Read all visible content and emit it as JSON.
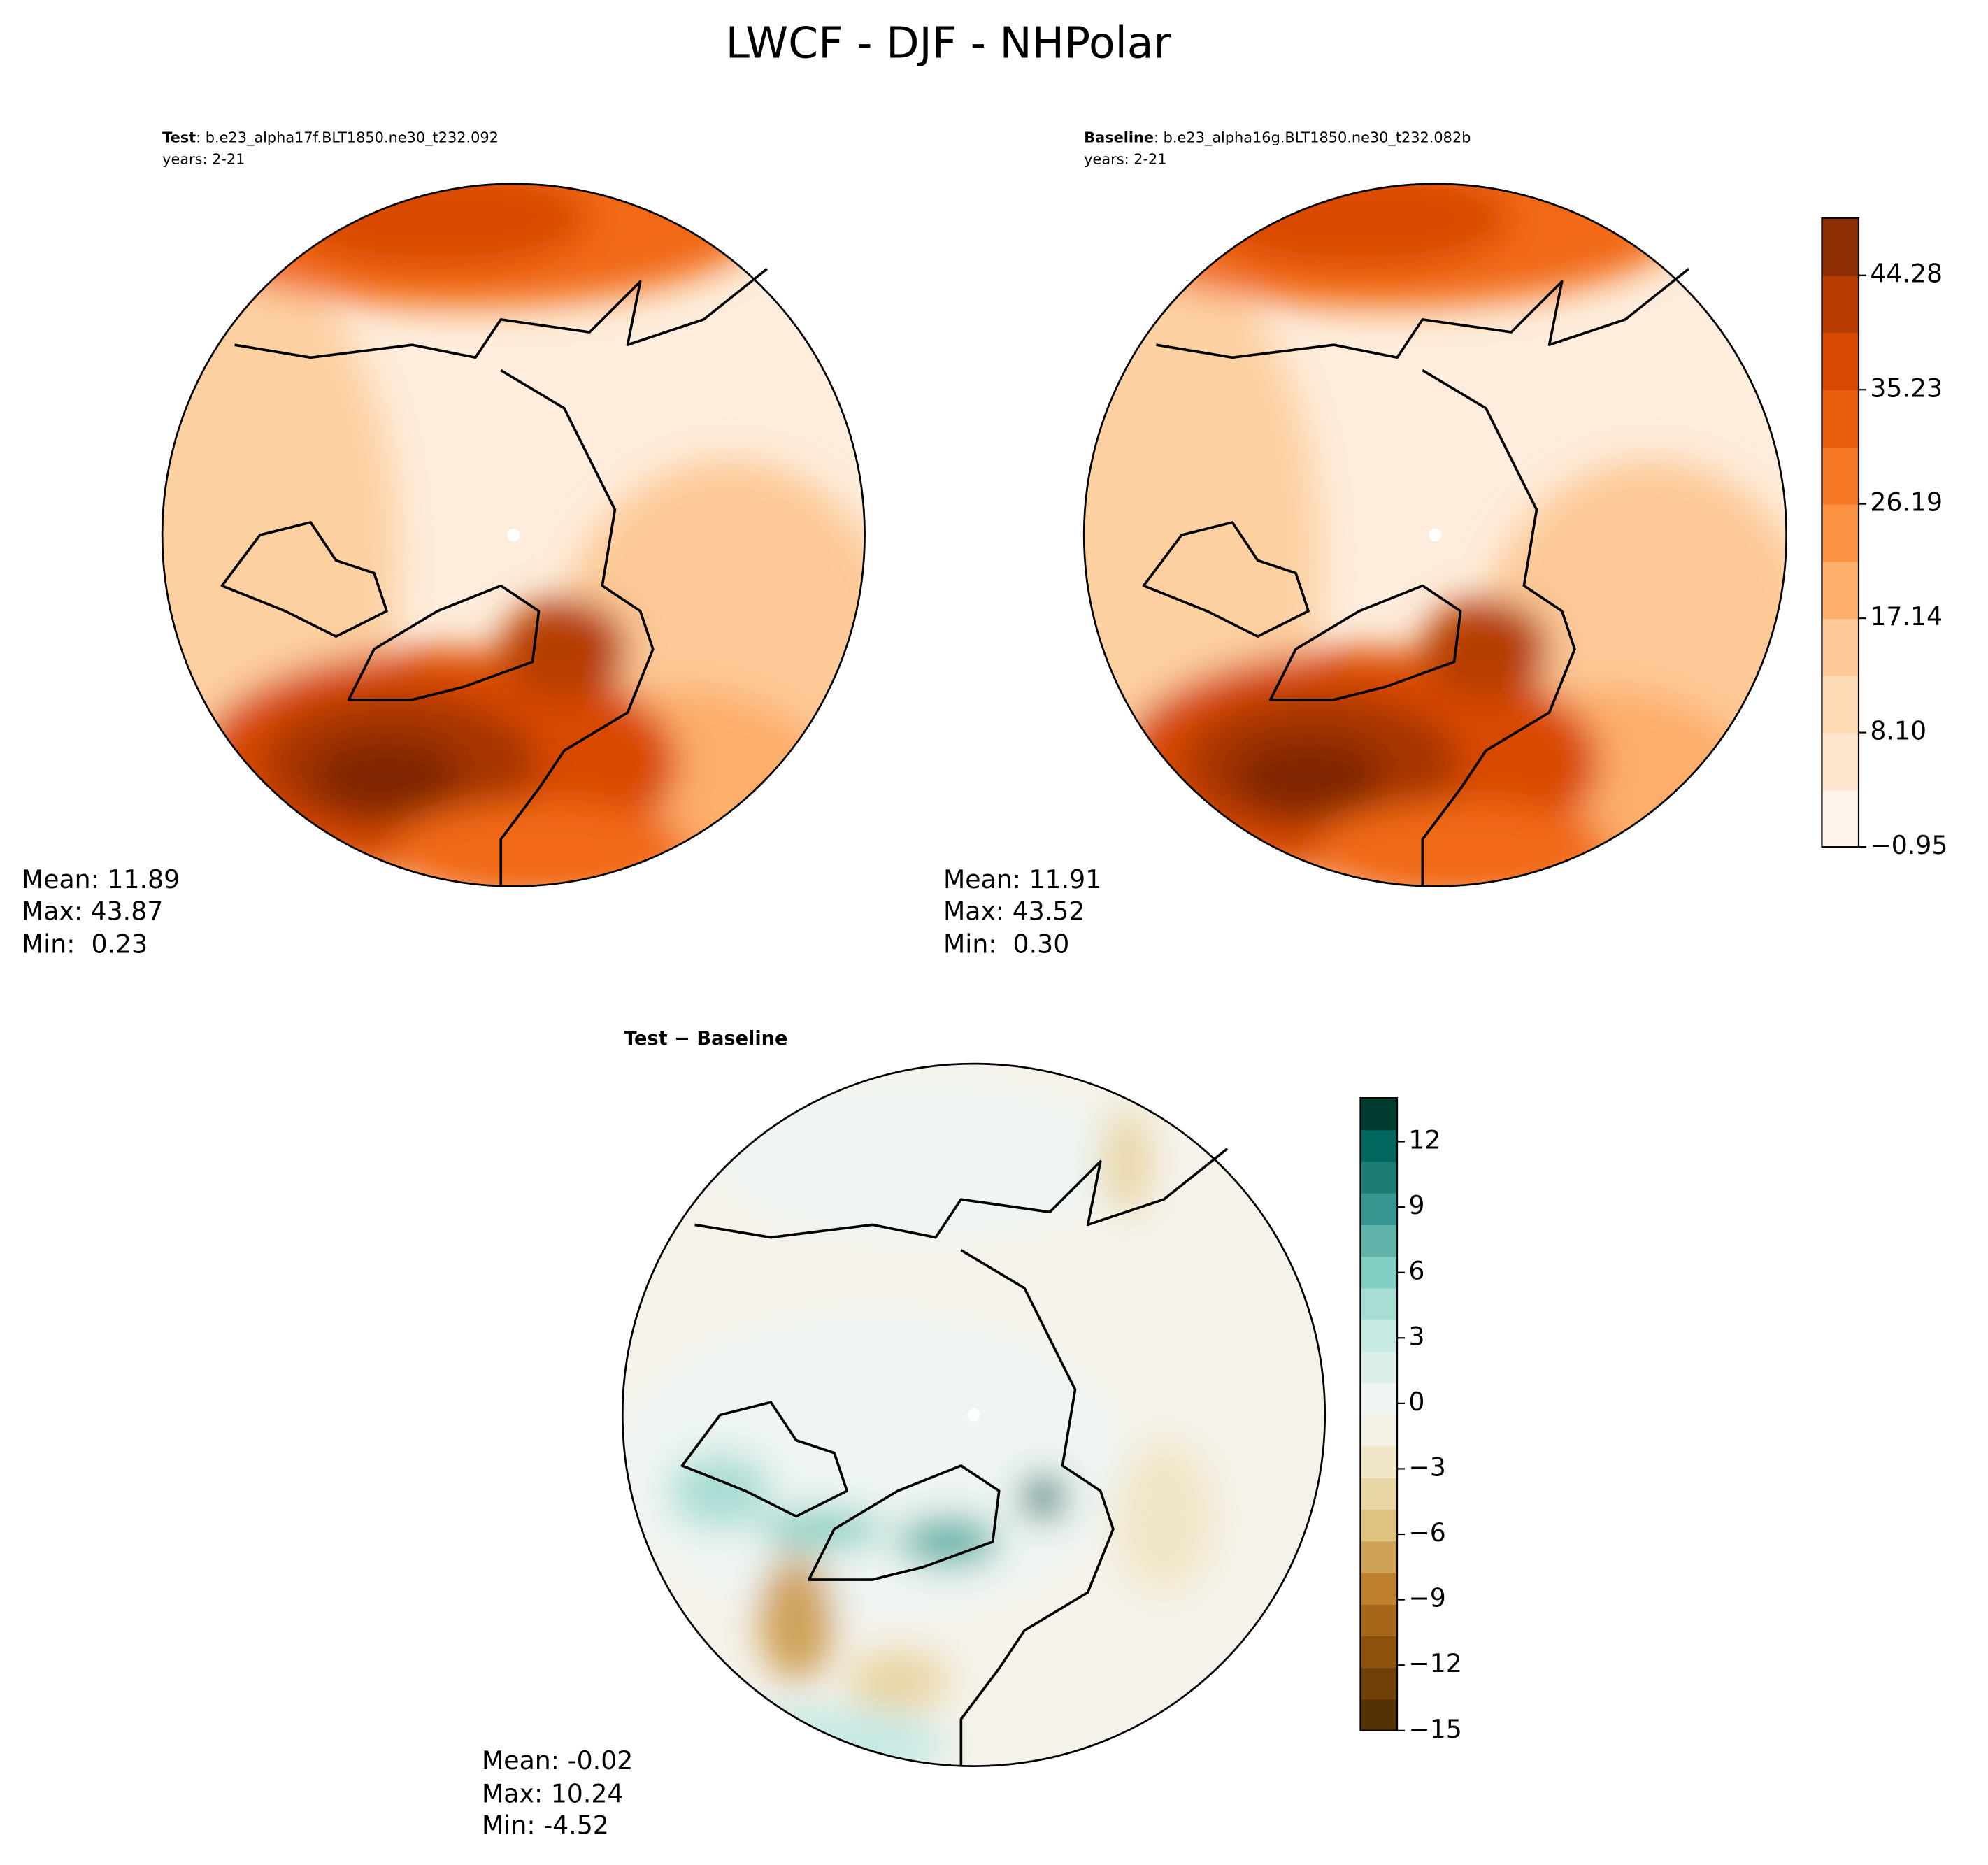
{
  "title": "LWCF - DJF - NHPolar",
  "panels": [
    {
      "label": "Test",
      "case": ": b.e23_alpha17f.BLT1850.ne30_t232.092",
      "years": "years: 2-21",
      "stats": [
        "Mean: 11.89",
        "Max: 43.87",
        "Min:  0.23"
      ]
    },
    {
      "label": "Baseline",
      "case": ": b.e23_alpha16g.BLT1850.ne30_t232.082b",
      "years": "years: 2-21",
      "stats": [
        "Mean: 11.91",
        "Max: 43.52",
        "Min:  0.30"
      ]
    }
  ],
  "diff": {
    "label": "Test − Baseline",
    "stats": [
      "Mean: -0.02",
      "Max: 10.24",
      "Min: -4.52"
    ]
  },
  "colorbars": [
    {
      "lim": [
        -0.95,
        48.81
      ],
      "ticks": [
        {
          "value": -0.95,
          "label": "−0.95"
        },
        {
          "value": 8.1,
          "label": "8.10"
        },
        17.14,
        26.19,
        35.23,
        44.28
      ],
      "colors": [
        "#fff5eb",
        "#fee6ce",
        "#fdd9b4",
        "#fdc997",
        "#fdae6b",
        "#fd9243",
        "#f67824",
        "#e95e0d",
        "#d94801",
        "#b63c02",
        "#8c2d04"
      ]
    },
    {
      "lim": [
        -15,
        14
      ],
      "ticks": [
        {
          "value": -15,
          "label": "−15"
        },
        {
          "value": -12,
          "label": "−12"
        },
        {
          "value": -9,
          "label": "−9"
        },
        {
          "value": -6,
          "label": "−6"
        },
        {
          "value": -3,
          "label": "−3"
        },
        0,
        3,
        6,
        9,
        12
      ],
      "colors": [
        "#543005",
        "#6e4008",
        "#8c510a",
        "#a6671b",
        "#bf812d",
        "#cfa25a",
        "#dfc27d",
        "#e9d6a5",
        "#f2e6c8",
        "#f5f0e4",
        "#eef5f3",
        "#daeeea",
        "#c7eae5",
        "#a8ddd4",
        "#80cdc1",
        "#5fb3a9",
        "#35978f",
        "#1b7d74",
        "#01665e",
        "#003c30"
      ]
    }
  ]
}
